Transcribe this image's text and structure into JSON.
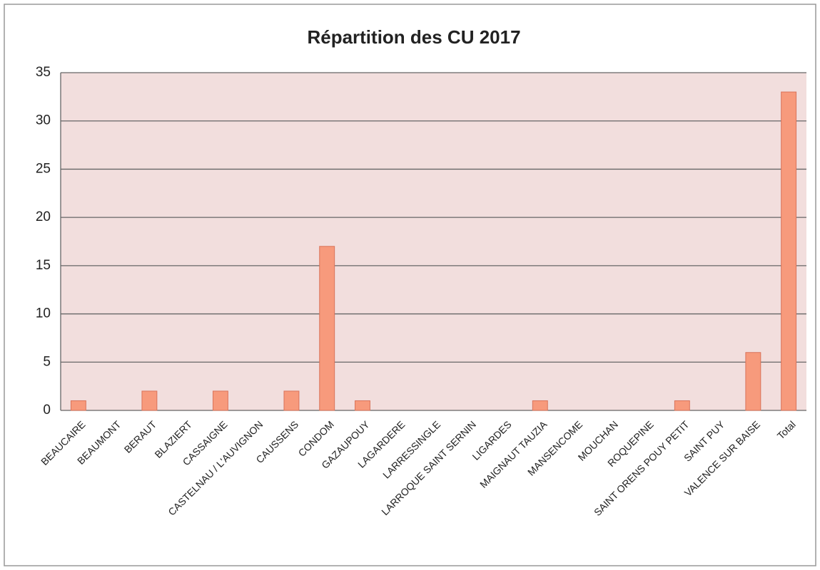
{
  "chart_data": {
    "type": "bar",
    "title": "Répartition des CU 2017",
    "categories": [
      "BEAUCAIRE",
      "BEAUMONT",
      "BERAUT",
      "BLAZIERT",
      "CASSAIGNE",
      "CASTELNAU / L'AUVIGNON",
      "CAUSSENS",
      "CONDOM",
      "GAZAUPOUY",
      "LAGARDERE",
      "LARRESSINGLE",
      "LARROQUE SAINT SERNIN",
      "LIGARDES",
      "MAIGNAUT TAUZIA",
      "MANSENCOME",
      "MOUCHAN",
      "ROQUEPINE",
      "SAINT ORENS POUY PETIT",
      "SAINT PUY",
      "VALENCE SUR BAISE",
      "Total"
    ],
    "values": [
      1,
      0,
      2,
      0,
      2,
      0,
      2,
      17,
      1,
      0,
      0,
      0,
      0,
      1,
      0,
      0,
      0,
      1,
      0,
      6,
      33
    ],
    "color": "#f79a7c",
    "ylim": [
      0,
      35
    ],
    "yticks": [
      0,
      5,
      10,
      15,
      20,
      25,
      30,
      35
    ],
    "grid": true
  }
}
